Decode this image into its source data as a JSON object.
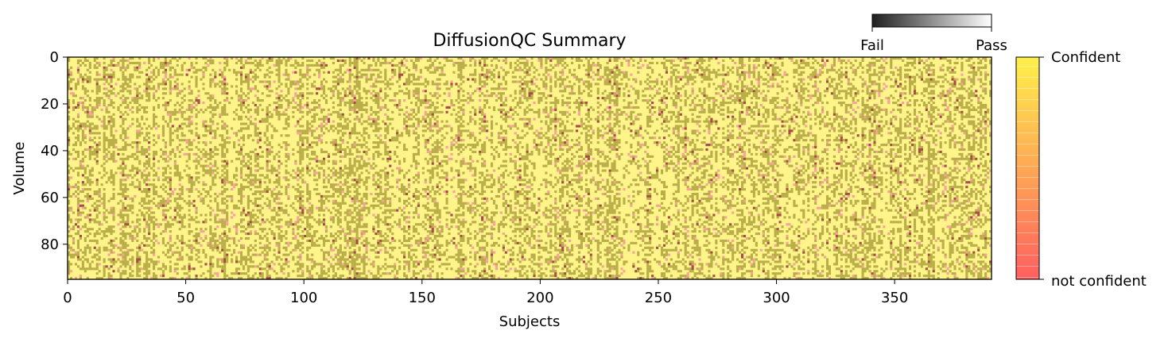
{
  "chart_data": {
    "type": "heatmap",
    "title": "DiffusionQC Summary",
    "xlabel": "Subjects",
    "ylabel": "Volume",
    "xlim": [
      0,
      391
    ],
    "ylim": [
      0,
      95
    ],
    "y_inverted": true,
    "xticks": [
      0,
      50,
      100,
      150,
      200,
      250,
      300,
      350
    ],
    "yticks": [
      0,
      20,
      40,
      60,
      80
    ],
    "n_subjects": 391,
    "n_volumes": 95,
    "cell_categories": [
      {
        "result": "Pass",
        "confidence": "Confident",
        "color": "#FFF48A",
        "share": 0.62
      },
      {
        "result": "Fail",
        "confidence": "Confident",
        "color": "#B9AE49",
        "share": 0.33
      },
      {
        "result": "Pass",
        "confidence": "not confident",
        "color": "#F9A29B",
        "share": 0.03
      },
      {
        "result": "Fail",
        "confidence": "not confident",
        "color": "#A94A49",
        "share": 0.02
      }
    ],
    "pass_fail_colorbar": {
      "low_label": "Fail",
      "high_label": "Pass",
      "low_color": "#1f1f1f",
      "high_color": "#ffffff",
      "placement": "top-right"
    },
    "confidence_colorbar": {
      "top_label": "Confident",
      "bottom_label": "not confident",
      "top_color": "#FFF04A",
      "bottom_color": "#FF5F5F",
      "placement": "right"
    }
  }
}
